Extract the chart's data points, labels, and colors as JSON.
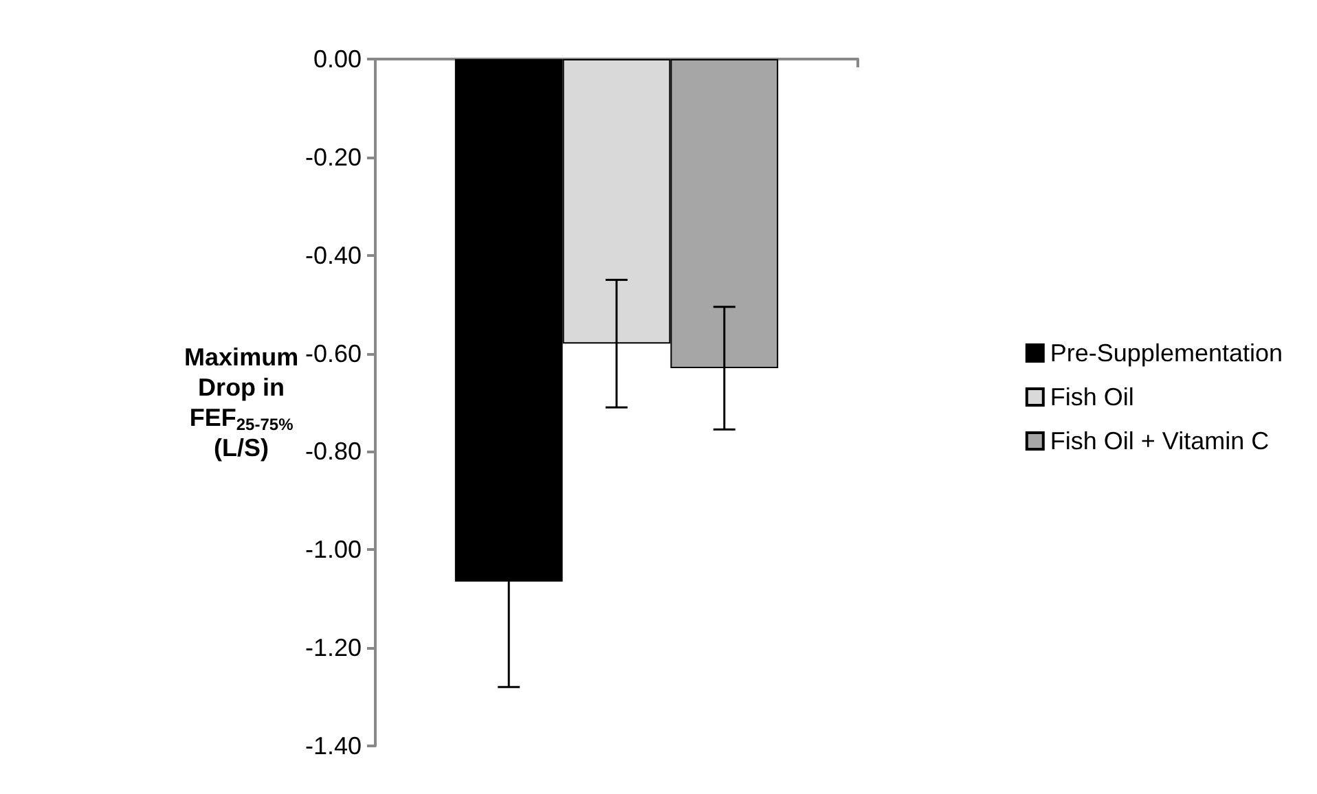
{
  "chart_data": {
    "type": "bar",
    "ylabel": "Maximum Drop in FEF$_{25-75%}$ (L/S)",
    "categories": [
      null
    ],
    "series": [
      {
        "name": "Pre-Supplementation",
        "color": "#000000",
        "values": [
          -1.065
        ],
        "errors": [
          0.215
        ]
      },
      {
        "name": "Fish Oil",
        "color": "#d9d9d9",
        "values": [
          -0.58
        ],
        "errors": [
          0.13
        ]
      },
      {
        "name": "Fish Oil + Vitamin C",
        "color": "#a6a6a6",
        "values": [
          -0.63
        ],
        "errors": [
          0.125
        ]
      }
    ],
    "ylim": [
      -1.4,
      0
    ],
    "yticks": [
      {
        "value": -1.4,
        "label": "-1.40"
      },
      {
        "value": -1.2,
        "label": "-1.20"
      },
      {
        "value": -1,
        "label": "-1.00"
      },
      {
        "value": -0.8,
        "label": "-0.80"
      },
      {
        "value": -0.6,
        "label": "-0.60"
      },
      {
        "value": -0.4,
        "label": "-0.40"
      },
      {
        "value": -0.2,
        "label": "-0.20"
      },
      {
        "value": 0,
        "label": "0.00"
      }
    ],
    "grid": false,
    "legend": "right"
  }
}
